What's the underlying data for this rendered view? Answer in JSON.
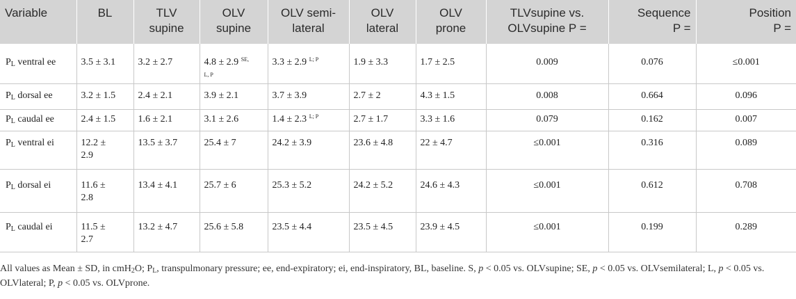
{
  "headers": [
    {
      "l1": "Variable",
      "l2": ""
    },
    {
      "l1": "BL",
      "l2": ""
    },
    {
      "l1": "TLV",
      "l2": "supine"
    },
    {
      "l1": "OLV",
      "l2": "supine"
    },
    {
      "l1": "OLV semi-",
      "l2": "lateral"
    },
    {
      "l1": "OLV",
      "l2": "lateral"
    },
    {
      "l1": "OLV",
      "l2": "prone"
    },
    {
      "l1": "TLVsupine vs.",
      "l2": "OLVsupine P ="
    },
    {
      "l1": "Sequence",
      "l2": "P ="
    },
    {
      "l1": "Position",
      "l2": "P ="
    }
  ],
  "rows": [
    {
      "var_main": "P",
      "var_sub": "L",
      "var_rest": " ventral ee",
      "bl": "3.5 ± 3.1",
      "bl2": "",
      "tlv": "3.2 ± 2.7",
      "olv_supine": "4.8 ± 2.9",
      "olv_supine_note": "SE,",
      "olv_supine_line2": "L, P",
      "olv_semi": "3.3 ± 2.9",
      "olv_semi_note": "L; P",
      "olv_lat": "1.9 ± 3.3",
      "olv_prone": "1.7 ± 2.5",
      "p_tlv_olv": "0.009",
      "p_seq": "0.076",
      "p_pos": "≤0.001"
    },
    {
      "var_main": "P",
      "var_sub": "L",
      "var_rest": " dorsal ee",
      "bl": "3.2 ± 1.5",
      "bl2": "",
      "tlv": "2.4 ± 2.1",
      "olv_supine": "3.9 ± 2.1",
      "olv_supine_note": "",
      "olv_supine_line2": "",
      "olv_semi": "3.7 ± 3.9",
      "olv_semi_note": "",
      "olv_lat": "2.7 ± 2",
      "olv_prone": "4.3 ± 1.5",
      "p_tlv_olv": "0.008",
      "p_seq": "0.664",
      "p_pos": "0.096"
    },
    {
      "var_main": "P",
      "var_sub": "L",
      "var_rest": " caudal ee",
      "bl": "2.4 ± 1.5",
      "bl2": "",
      "tlv": "1.6 ± 2.1",
      "olv_supine": "3.1 ± 2.6",
      "olv_supine_note": "",
      "olv_supine_line2": "",
      "olv_semi": "1.4 ± 2.3",
      "olv_semi_note": "L; P",
      "olv_lat": "2.7 ± 1.7",
      "olv_prone": "3.3 ± 1.6",
      "p_tlv_olv": "0.079",
      "p_seq": "0.162",
      "p_pos": "0.007"
    },
    {
      "var_main": "P",
      "var_sub": "L",
      "var_rest": " ventral ei",
      "bl": "12.2 ±",
      "bl2": "2.9",
      "tlv": "13.5 ± 3.7",
      "olv_supine": "25.4 ± 7",
      "olv_supine_note": "",
      "olv_supine_line2": "",
      "olv_semi": "24.2 ± 3.9",
      "olv_semi_note": "",
      "olv_lat": "23.6 ± 4.8",
      "olv_prone": "22 ± 4.7",
      "p_tlv_olv": "≤0.001",
      "p_seq": "0.316",
      "p_pos": "0.089"
    },
    {
      "var_main": "P",
      "var_sub": "L",
      "var_rest": " dorsal ei",
      "bl": "11.6 ±",
      "bl2": "2.8",
      "tlv": "13.4 ± 4.1",
      "olv_supine": "25.7 ± 6",
      "olv_supine_note": "",
      "olv_supine_line2": "",
      "olv_semi": "25.3 ± 5.2",
      "olv_semi_note": "",
      "olv_lat": "24.2 ± 5.2",
      "olv_prone": "24.6 ± 4.3",
      "p_tlv_olv": "≤0.001",
      "p_seq": "0.612",
      "p_pos": "0.708"
    },
    {
      "var_main": "P",
      "var_sub": "L",
      "var_rest": " caudal ei",
      "bl": "11.5 ±",
      "bl2": "2.7",
      "tlv": "13.2 ± 4.7",
      "olv_supine": "25.6 ± 5.8",
      "olv_supine_note": "",
      "olv_supine_line2": "",
      "olv_semi": "23.5 ± 4.4",
      "olv_semi_note": "",
      "olv_lat": "23.5 ± 4.5",
      "olv_prone": "23.9 ± 4.5",
      "p_tlv_olv": "≤0.001",
      "p_seq": "0.199",
      "p_pos": "0.289"
    }
  ],
  "footnote": {
    "line1_a": "All values as Mean ± SD, in cmH",
    "line1_sub2": "2",
    "line1_b": "O; P",
    "line1_subL": "L",
    "line1_c": ", transpulmonary pressure; ee, end-expiratory; ei, end-inspiratory, BL, baseline. S, ",
    "p1": "p",
    "line1_d": " < 0.05 vs. OLVsupine; SE, ",
    "p2": "p",
    "line1_e": " < 0.05 vs. OLVsemilateral; L, ",
    "p3": "p",
    "line1_f": " < 0.05 vs.",
    "line2_a": "OLVlateral; P, ",
    "p4": "p",
    "line2_b": " < 0.05 vs. OLVprone."
  }
}
